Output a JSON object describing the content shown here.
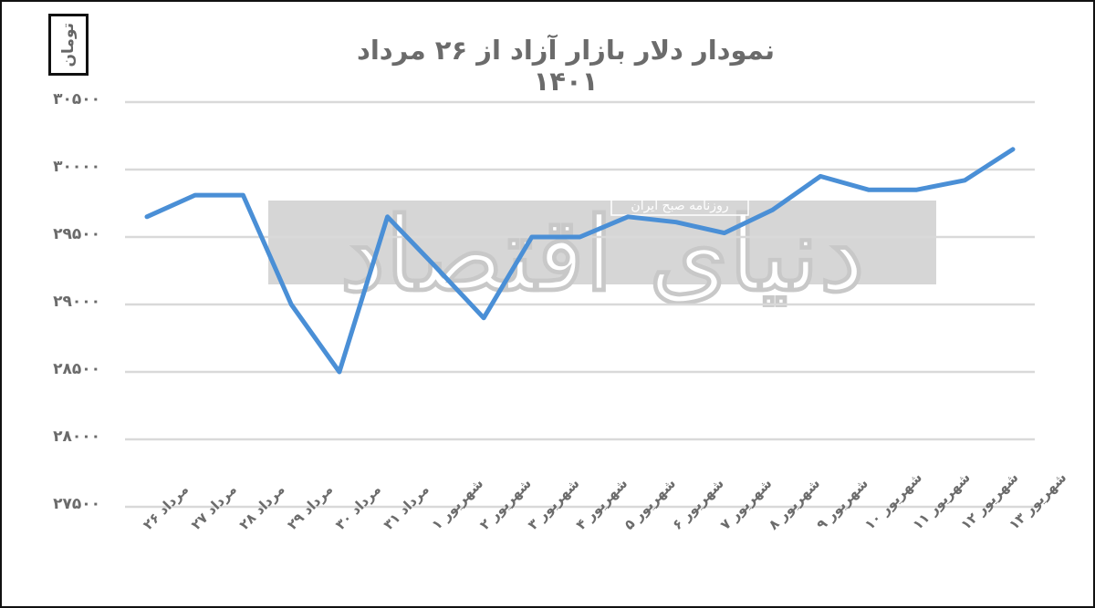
{
  "unit_label": "تومان",
  "watermark": {
    "brand": "دنیای اقتصاد",
    "subtitle": "روزنامه صبح ایران"
  },
  "colors": {
    "line": "#4a8fd6",
    "grid": "#d9d9d9",
    "text": "#6b6b6b",
    "watermark_box": "#d6d6d6",
    "frame": "#111111"
  },
  "chart_data": {
    "type": "line",
    "title": "نمودار دلار بازار آزاد از ۲۶ مرداد ۱۴۰۱",
    "xlabel": "",
    "ylabel": "تومان",
    "ylim": [
      27500,
      30500
    ],
    "grid": true,
    "legend": null,
    "yticks": [
      27500,
      28000,
      28500,
      29000,
      29500,
      30000,
      30500
    ],
    "ytick_labels": [
      "۲۷۵۰۰",
      "۲۸۰۰۰",
      "۲۸۵۰۰",
      "۲۹۰۰۰",
      "۲۹۵۰۰",
      "۳۰۰۰۰",
      "۳۰۵۰۰"
    ],
    "categories": [
      "مرداد ۲۶",
      "مرداد ۲۷",
      "مرداد ۲۸",
      "مرداد ۲۹",
      "مرداد ۳۰",
      "مرداد ۳۱",
      "شهریور ۱",
      "شهریور ۲",
      "شهریور ۳",
      "شهریور ۴",
      "شهریور ۵",
      "شهریور ۶",
      "شهریور ۷",
      "شهریور ۸",
      "شهریور ۹",
      "شهریور ۱۰",
      "شهریور ۱۱",
      "شهریور ۱۲",
      "شهریور ۱۳"
    ],
    "series": [
      {
        "name": "دلار بازار آزاد",
        "values": [
          29650,
          29810,
          29810,
          29000,
          28500,
          29650,
          29280,
          28900,
          29500,
          29500,
          29650,
          29610,
          29530,
          29700,
          29950,
          29850,
          29850,
          29920,
          30150
        ]
      }
    ]
  }
}
